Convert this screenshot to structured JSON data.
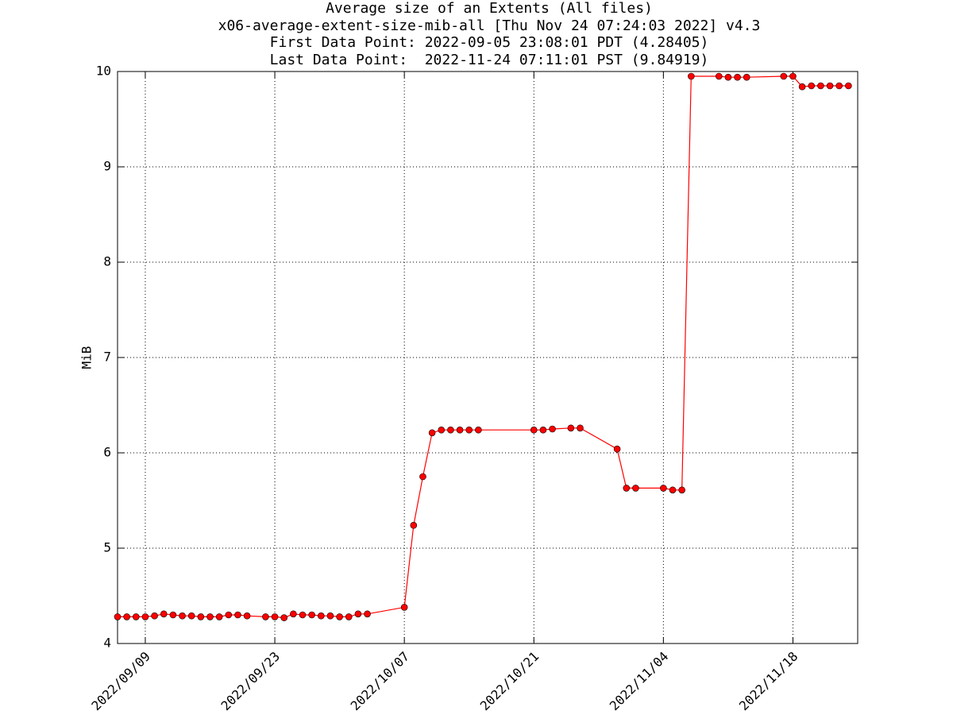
{
  "chart_data": {
    "type": "line",
    "title": "Average size of an Extents (All files)",
    "subtitle": [
      "x06-average-extent-size-mib-all [Thu Nov 24 07:24:03 2022] v4.3",
      "First Data Point: 2022-09-05 23:08:01 PDT (4.28405)",
      "Last Data Point:  2022-11-24 07:11:01 PST (9.84919)"
    ],
    "y_label": "MiB",
    "x": [
      "2022-09-06",
      "2022-09-07",
      "2022-09-08",
      "2022-09-09",
      "2022-09-10",
      "2022-09-11",
      "2022-09-12",
      "2022-09-13",
      "2022-09-14",
      "2022-09-15",
      "2022-09-16",
      "2022-09-17",
      "2022-09-18",
      "2022-09-19",
      "2022-09-20",
      "2022-09-22",
      "2022-09-23",
      "2022-09-24",
      "2022-09-25",
      "2022-09-26",
      "2022-09-27",
      "2022-09-28",
      "2022-09-29",
      "2022-09-30",
      "2022-10-01",
      "2022-10-02",
      "2022-10-03",
      "2022-10-07",
      "2022-10-08",
      "2022-10-09",
      "2022-10-10",
      "2022-10-11",
      "2022-10-12",
      "2022-10-13",
      "2022-10-14",
      "2022-10-15",
      "2022-10-21",
      "2022-10-22",
      "2022-10-23",
      "2022-10-25",
      "2022-10-26",
      "2022-10-30",
      "2022-10-31",
      "2022-11-01",
      "2022-11-04",
      "2022-11-05",
      "2022-11-06",
      "2022-11-07",
      "2022-11-10",
      "2022-11-11",
      "2022-11-12",
      "2022-11-13",
      "2022-11-17",
      "2022-11-18",
      "2022-11-19",
      "2022-11-20",
      "2022-11-21",
      "2022-11-22",
      "2022-11-23",
      "2022-11-24"
    ],
    "series": [
      {
        "name": "MiB",
        "color": "#ff0000",
        "values": [
          4.28,
          4.28,
          4.28,
          4.28,
          4.29,
          4.31,
          4.3,
          4.29,
          4.29,
          4.28,
          4.28,
          4.28,
          4.3,
          4.3,
          4.29,
          4.28,
          4.28,
          4.27,
          4.31,
          4.3,
          4.3,
          4.29,
          4.29,
          4.28,
          4.28,
          4.31,
          4.31,
          4.38,
          5.24,
          5.75,
          6.21,
          6.24,
          6.24,
          6.24,
          6.24,
          6.24,
          6.24,
          6.24,
          6.25,
          6.26,
          6.26,
          6.04,
          5.63,
          5.63,
          5.63,
          5.61,
          5.61,
          9.95,
          9.95,
          9.94,
          9.94,
          9.94,
          9.95,
          9.95,
          9.84,
          9.85,
          9.85,
          9.85,
          9.85,
          9.85
        ]
      }
    ],
    "xlim": [
      "2022-09-06",
      "2022-11-25"
    ],
    "xticks": [
      {
        "value": "2022-09-09",
        "label": "2022/09/09"
      },
      {
        "value": "2022-09-23",
        "label": "2022/09/23"
      },
      {
        "value": "2022-10-07",
        "label": "2022/10/07"
      },
      {
        "value": "2022-10-21",
        "label": "2022/10/21"
      },
      {
        "value": "2022-11-04",
        "label": "2022/11/04"
      },
      {
        "value": "2022-11-18",
        "label": "2022/11/18"
      }
    ],
    "ylim": [
      4,
      10
    ],
    "yticks": [
      4,
      5,
      6,
      7,
      8,
      9,
      10
    ],
    "grid": true
  }
}
